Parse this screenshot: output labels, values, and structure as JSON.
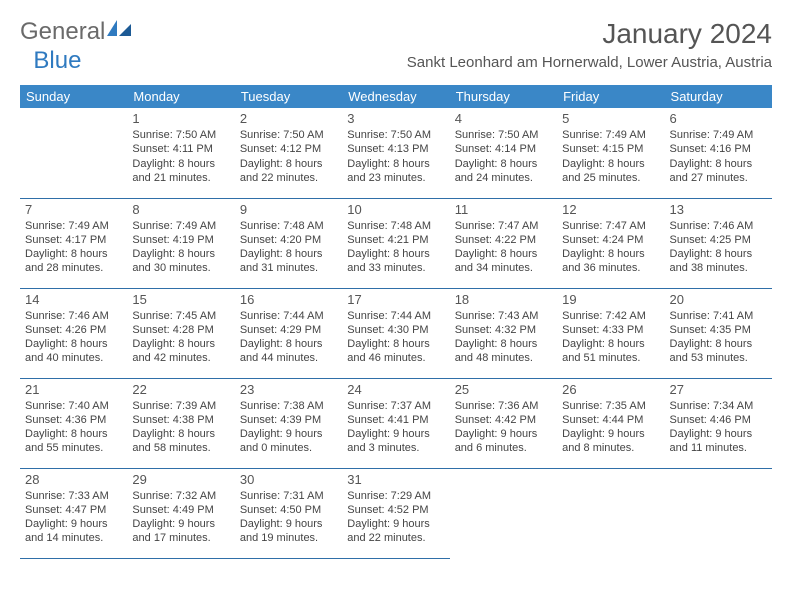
{
  "logo": {
    "general": "General",
    "blue": "Blue"
  },
  "title": "January 2024",
  "location": "Sankt Leonhard am Hornerwald, Lower Austria, Austria",
  "colors": {
    "header_bg": "#3a87c7",
    "header_text": "#ffffff",
    "row_border": "#2f6fa8",
    "text": "#444444",
    "title_text": "#555555",
    "logo_blue": "#2f7ac0",
    "logo_gray": "#6a6a6a"
  },
  "weekdays": [
    "Sunday",
    "Monday",
    "Tuesday",
    "Wednesday",
    "Thursday",
    "Friday",
    "Saturday"
  ],
  "lead_blanks": 1,
  "days": [
    {
      "n": 1,
      "sunrise": "7:50 AM",
      "sunset": "4:11 PM",
      "dl_h": 8,
      "dl_m": 21
    },
    {
      "n": 2,
      "sunrise": "7:50 AM",
      "sunset": "4:12 PM",
      "dl_h": 8,
      "dl_m": 22
    },
    {
      "n": 3,
      "sunrise": "7:50 AM",
      "sunset": "4:13 PM",
      "dl_h": 8,
      "dl_m": 23
    },
    {
      "n": 4,
      "sunrise": "7:50 AM",
      "sunset": "4:14 PM",
      "dl_h": 8,
      "dl_m": 24
    },
    {
      "n": 5,
      "sunrise": "7:49 AM",
      "sunset": "4:15 PM",
      "dl_h": 8,
      "dl_m": 25
    },
    {
      "n": 6,
      "sunrise": "7:49 AM",
      "sunset": "4:16 PM",
      "dl_h": 8,
      "dl_m": 27
    },
    {
      "n": 7,
      "sunrise": "7:49 AM",
      "sunset": "4:17 PM",
      "dl_h": 8,
      "dl_m": 28
    },
    {
      "n": 8,
      "sunrise": "7:49 AM",
      "sunset": "4:19 PM",
      "dl_h": 8,
      "dl_m": 30
    },
    {
      "n": 9,
      "sunrise": "7:48 AM",
      "sunset": "4:20 PM",
      "dl_h": 8,
      "dl_m": 31
    },
    {
      "n": 10,
      "sunrise": "7:48 AM",
      "sunset": "4:21 PM",
      "dl_h": 8,
      "dl_m": 33
    },
    {
      "n": 11,
      "sunrise": "7:47 AM",
      "sunset": "4:22 PM",
      "dl_h": 8,
      "dl_m": 34
    },
    {
      "n": 12,
      "sunrise": "7:47 AM",
      "sunset": "4:24 PM",
      "dl_h": 8,
      "dl_m": 36
    },
    {
      "n": 13,
      "sunrise": "7:46 AM",
      "sunset": "4:25 PM",
      "dl_h": 8,
      "dl_m": 38
    },
    {
      "n": 14,
      "sunrise": "7:46 AM",
      "sunset": "4:26 PM",
      "dl_h": 8,
      "dl_m": 40
    },
    {
      "n": 15,
      "sunrise": "7:45 AM",
      "sunset": "4:28 PM",
      "dl_h": 8,
      "dl_m": 42
    },
    {
      "n": 16,
      "sunrise": "7:44 AM",
      "sunset": "4:29 PM",
      "dl_h": 8,
      "dl_m": 44
    },
    {
      "n": 17,
      "sunrise": "7:44 AM",
      "sunset": "4:30 PM",
      "dl_h": 8,
      "dl_m": 46
    },
    {
      "n": 18,
      "sunrise": "7:43 AM",
      "sunset": "4:32 PM",
      "dl_h": 8,
      "dl_m": 48
    },
    {
      "n": 19,
      "sunrise": "7:42 AM",
      "sunset": "4:33 PM",
      "dl_h": 8,
      "dl_m": 51
    },
    {
      "n": 20,
      "sunrise": "7:41 AM",
      "sunset": "4:35 PM",
      "dl_h": 8,
      "dl_m": 53
    },
    {
      "n": 21,
      "sunrise": "7:40 AM",
      "sunset": "4:36 PM",
      "dl_h": 8,
      "dl_m": 55
    },
    {
      "n": 22,
      "sunrise": "7:39 AM",
      "sunset": "4:38 PM",
      "dl_h": 8,
      "dl_m": 58
    },
    {
      "n": 23,
      "sunrise": "7:38 AM",
      "sunset": "4:39 PM",
      "dl_h": 9,
      "dl_m": 0
    },
    {
      "n": 24,
      "sunrise": "7:37 AM",
      "sunset": "4:41 PM",
      "dl_h": 9,
      "dl_m": 3
    },
    {
      "n": 25,
      "sunrise": "7:36 AM",
      "sunset": "4:42 PM",
      "dl_h": 9,
      "dl_m": 6
    },
    {
      "n": 26,
      "sunrise": "7:35 AM",
      "sunset": "4:44 PM",
      "dl_h": 9,
      "dl_m": 8
    },
    {
      "n": 27,
      "sunrise": "7:34 AM",
      "sunset": "4:46 PM",
      "dl_h": 9,
      "dl_m": 11
    },
    {
      "n": 28,
      "sunrise": "7:33 AM",
      "sunset": "4:47 PM",
      "dl_h": 9,
      "dl_m": 14
    },
    {
      "n": 29,
      "sunrise": "7:32 AM",
      "sunset": "4:49 PM",
      "dl_h": 9,
      "dl_m": 17
    },
    {
      "n": 30,
      "sunrise": "7:31 AM",
      "sunset": "4:50 PM",
      "dl_h": 9,
      "dl_m": 19
    },
    {
      "n": 31,
      "sunrise": "7:29 AM",
      "sunset": "4:52 PM",
      "dl_h": 9,
      "dl_m": 22
    }
  ],
  "labels": {
    "sunrise_prefix": "Sunrise: ",
    "sunset_prefix": "Sunset: ",
    "daylight_prefix": "Daylight: ",
    "hours_word": " hours",
    "and_word": "and ",
    "minutes_word": " minutes."
  }
}
